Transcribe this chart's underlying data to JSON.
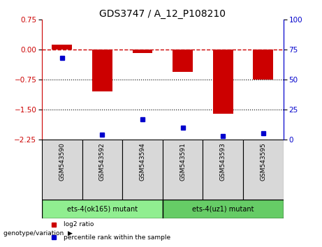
{
  "title": "GDS3747 / A_12_P108210",
  "samples": [
    "GSM543590",
    "GSM543592",
    "GSM543594",
    "GSM543591",
    "GSM543593",
    "GSM543595"
  ],
  "log2_ratio": [
    0.12,
    -1.05,
    -0.08,
    -0.55,
    -1.6,
    -0.75
  ],
  "percentile_rank": [
    68,
    4,
    17,
    10,
    3,
    5
  ],
  "ylim_left": [
    -2.25,
    0.75
  ],
  "ylim_right": [
    0,
    100
  ],
  "yticks_left": [
    0.75,
    0,
    -0.75,
    -1.5,
    -2.25
  ],
  "yticks_right": [
    100,
    75,
    50,
    25,
    0
  ],
  "hlines_dotted": [
    -0.75,
    -1.5
  ],
  "bar_color": "#cc0000",
  "dot_color": "#0000cc",
  "group1_label": "ets-4(ok165) mutant",
  "group2_label": "ets-4(uz1) mutant",
  "group1_color": "#90EE90",
  "group2_color": "#66CC66",
  "group1_samples": [
    0,
    1,
    2
  ],
  "group2_samples": [
    3,
    4,
    5
  ],
  "legend_bar_label": "log2 ratio",
  "legend_dot_label": "percentile rank within the sample",
  "genotype_label": "genotype/variation",
  "background_color": "#d8d8d8",
  "plot_bg": "#ffffff",
  "left_axis_color": "#cc0000",
  "right_axis_color": "#0000cc"
}
